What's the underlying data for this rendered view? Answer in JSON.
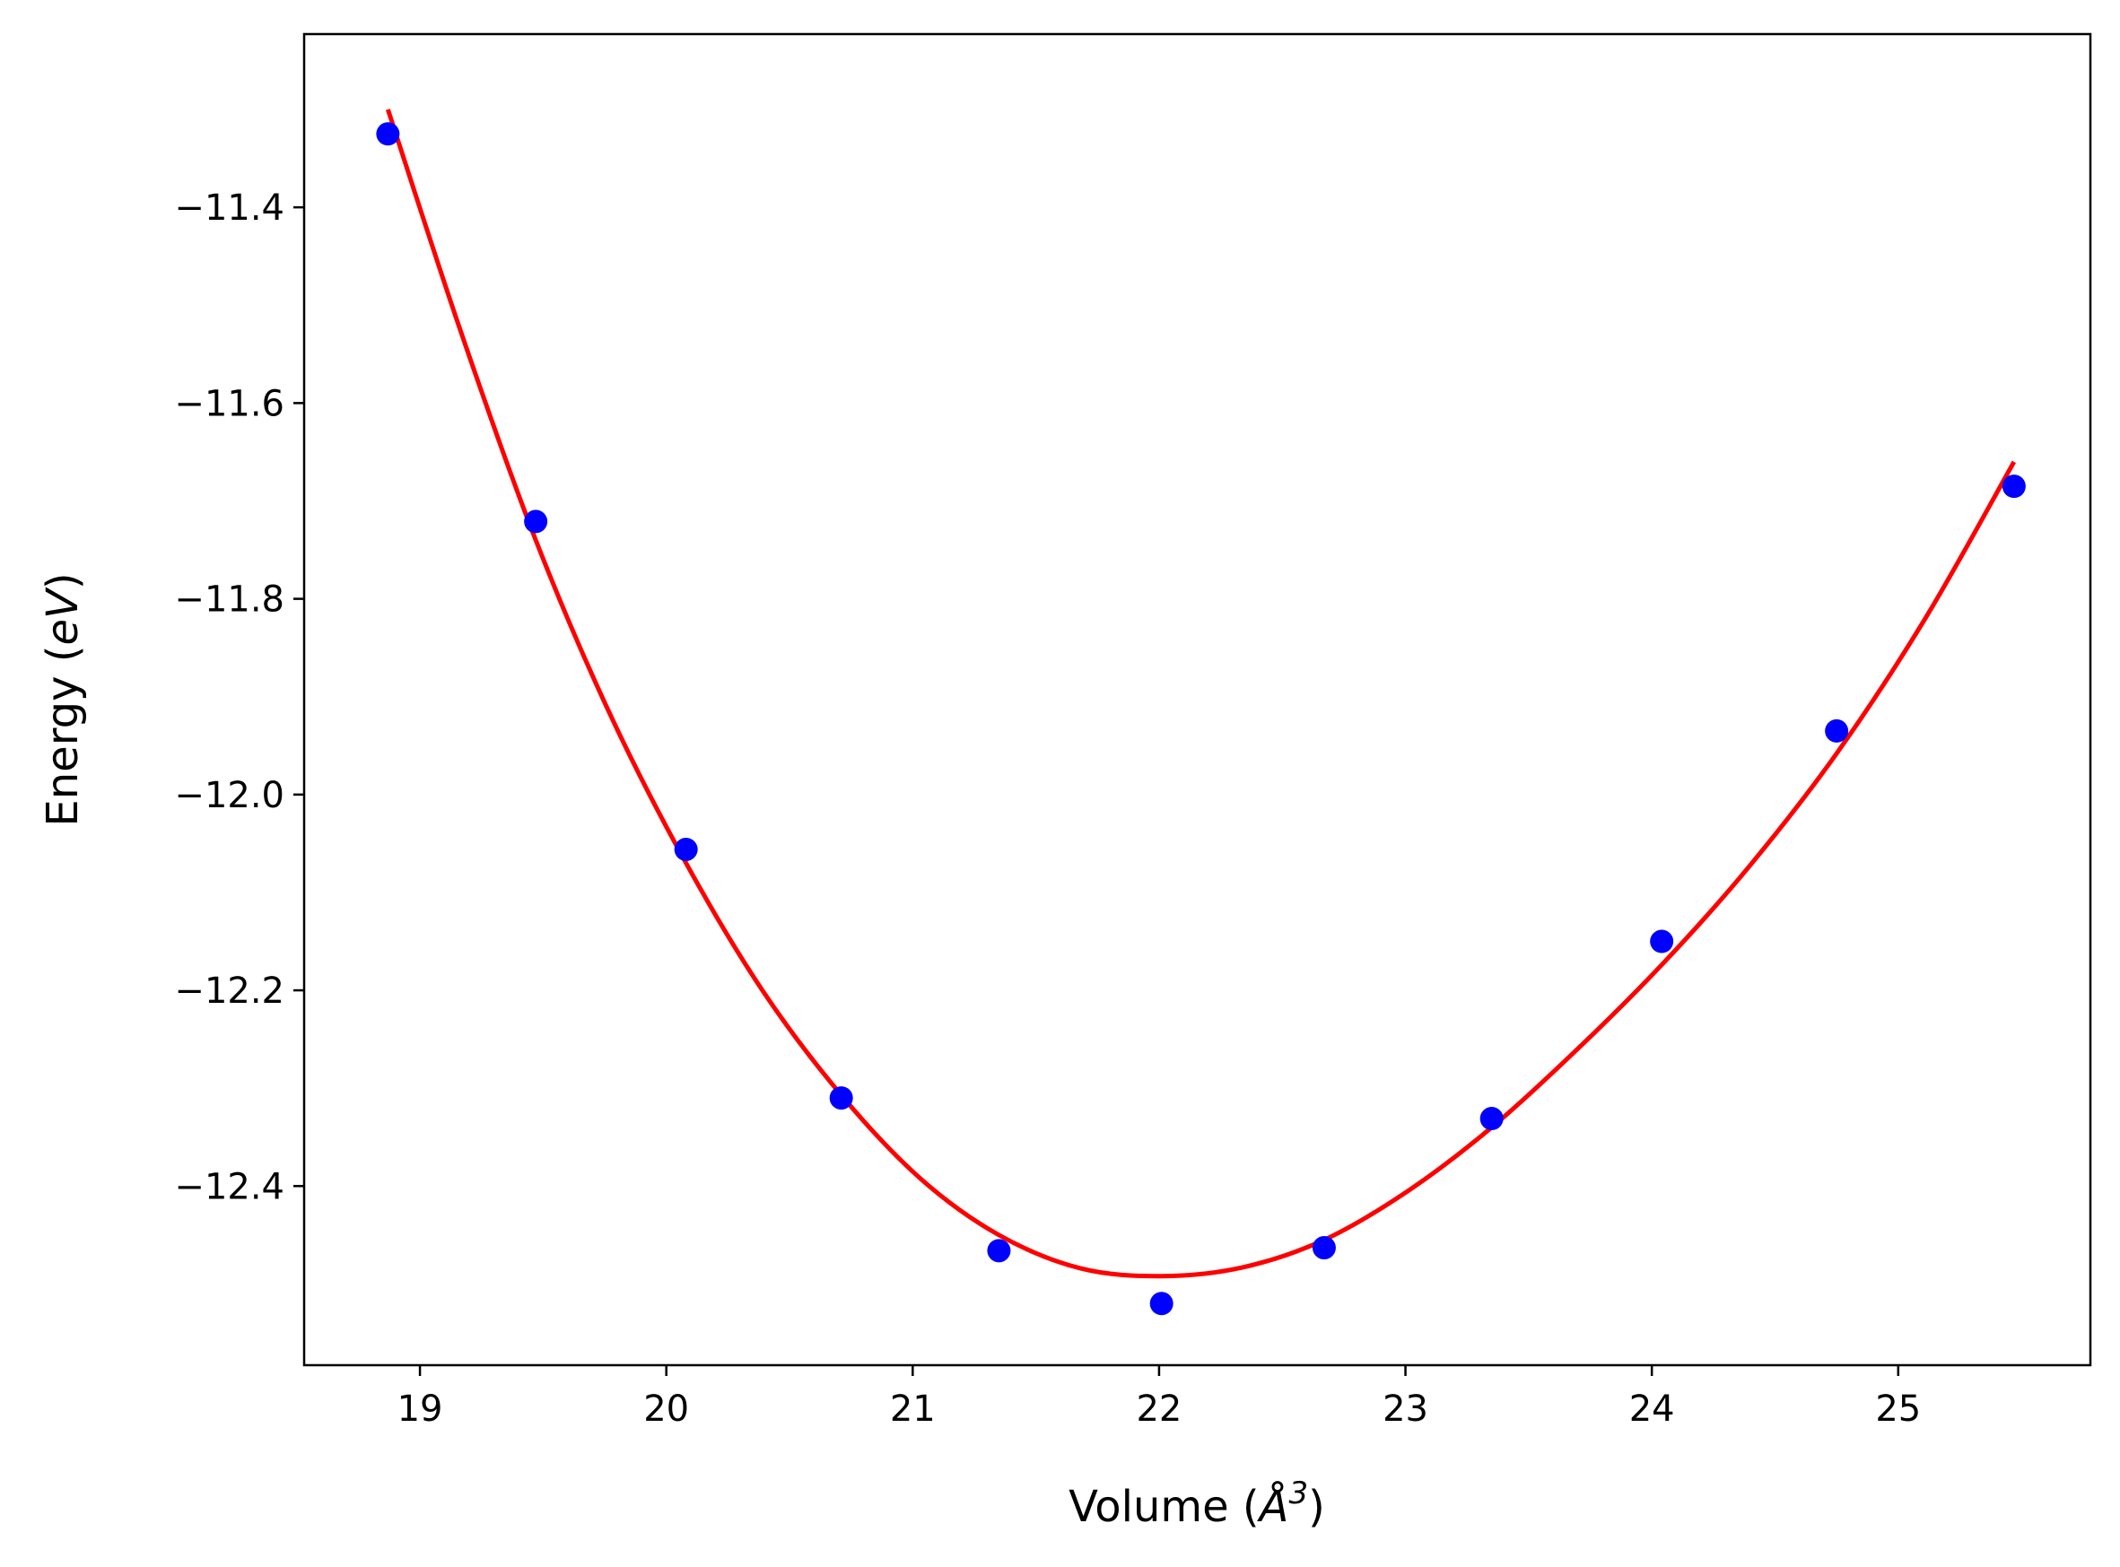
{
  "chart_data": {
    "type": "scatter",
    "title": "",
    "xlabel": {
      "prefix": "Volume (",
      "symbol": "Å",
      "superscript": "3",
      "suffix": ")"
    },
    "ylabel": {
      "prefix": "Energy (",
      "symbol": "eV",
      "suffix": ")"
    },
    "xlim": [
      18.53,
      25.78
    ],
    "ylim": [
      -12.583,
      -11.223
    ],
    "xticks": [
      19,
      20,
      21,
      22,
      23,
      24,
      25
    ],
    "xtick_labels": [
      "19",
      "20",
      "21",
      "22",
      "23",
      "24",
      "25"
    ],
    "yticks": [
      -12.4,
      -12.2,
      -12.0,
      -11.8,
      -11.6,
      -11.4
    ],
    "ytick_labels": [
      "−12.4",
      "−12.2",
      "−12.0",
      "−11.8",
      "−11.6",
      "−11.4"
    ],
    "grid": false,
    "series": [
      {
        "kind": "points",
        "color": "#0000ff",
        "x": [
          18.87,
          19.47,
          20.08,
          20.71,
          21.35,
          22.01,
          22.67,
          23.35,
          24.04,
          24.75,
          25.47
        ],
        "y": [
          -11.325,
          -11.721,
          -12.056,
          -12.31,
          -12.466,
          -12.52,
          -12.463,
          -12.331,
          -12.15,
          -11.935,
          -11.685
        ]
      },
      {
        "kind": "fit-line",
        "color": "#ff0000",
        "x": [
          18.87,
          19.17,
          19.47,
          19.77,
          20.08,
          20.39,
          20.71,
          21.03,
          21.35,
          21.68,
          22.01,
          22.34,
          22.67,
          23.01,
          23.35,
          23.69,
          24.04,
          24.39,
          24.75,
          25.11,
          25.47
        ],
        "y": [
          -11.3,
          -11.53,
          -11.74,
          -11.917,
          -12.07,
          -12.2,
          -12.307,
          -12.392,
          -12.45,
          -12.484,
          -12.492,
          -12.483,
          -12.455,
          -12.405,
          -12.34,
          -12.262,
          -12.174,
          -12.075,
          -11.958,
          -11.82,
          -11.66
        ]
      }
    ]
  }
}
